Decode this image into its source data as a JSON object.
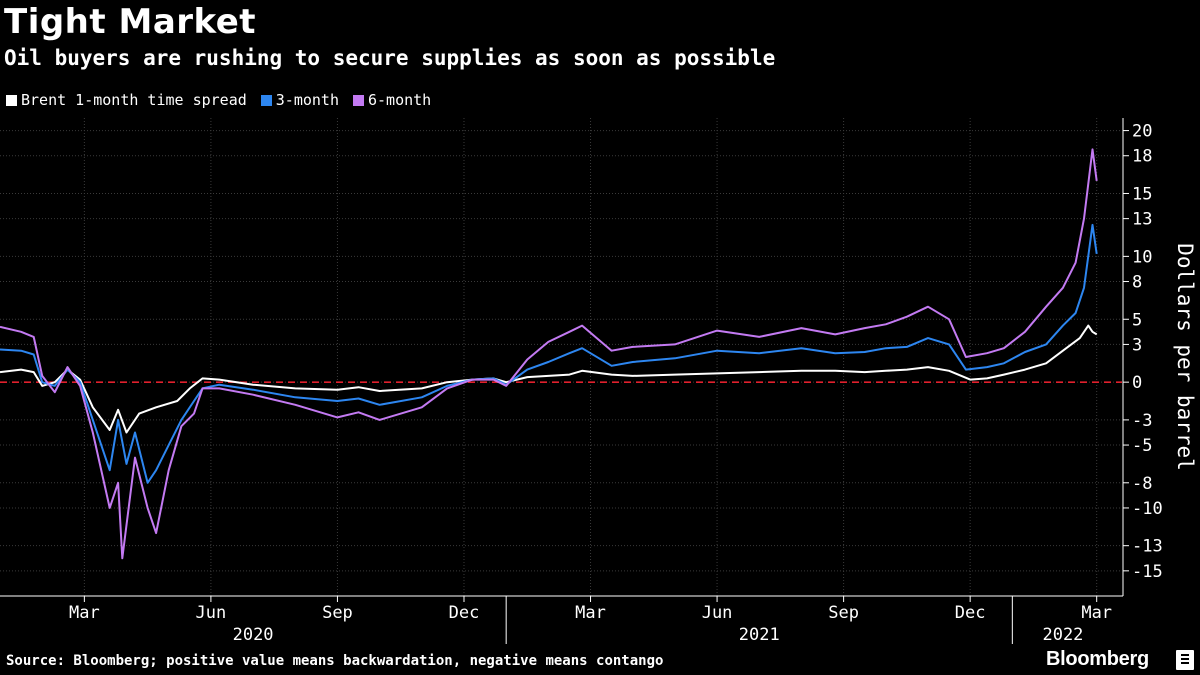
{
  "chart_data": {
    "type": "line",
    "title": "Tight Market",
    "subtitle": "Oil buyers are rushing to secure supplies as soon as possible",
    "ylabel": "Dollars per barrel",
    "ylim": [
      -17,
      21
    ],
    "y_ticks": [
      20,
      18,
      15,
      13,
      10,
      8,
      5,
      3,
      0,
      -3,
      -5,
      -8,
      -10,
      -13,
      -15
    ],
    "x_ticks": [
      "Mar",
      "Jun",
      "Sep",
      "Dec",
      "Mar",
      "Jun",
      "Sep",
      "Dec",
      "Mar"
    ],
    "x_tick_index": [
      2.0,
      5.0,
      8.0,
      11.0,
      14.0,
      17.0,
      20.0,
      23.0,
      26.0
    ],
    "year_labels": [
      "2020",
      "2021",
      "2022"
    ],
    "year_label_index": [
      6.0,
      18.0,
      25.2
    ],
    "year_separator_index": [
      12.0,
      24.0
    ],
    "x_range_index": [
      0,
      26.6
    ],
    "reference_line": {
      "value": 0,
      "color": "#e0202c",
      "style": "dashed"
    },
    "series": [
      {
        "name": "Brent 1-month time spread",
        "color": "#ffffff",
        "points": [
          [
            0,
            0.8
          ],
          [
            0.5,
            1.0
          ],
          [
            0.8,
            0.8
          ],
          [
            1.0,
            -0.3
          ],
          [
            1.3,
            0
          ],
          [
            1.6,
            1.0
          ],
          [
            1.9,
            0.2
          ],
          [
            2.2,
            -2
          ],
          [
            2.6,
            -3.8
          ],
          [
            2.8,
            -2.2
          ],
          [
            3.0,
            -4
          ],
          [
            3.3,
            -2.5
          ],
          [
            3.7,
            -2
          ],
          [
            4.2,
            -1.5
          ],
          [
            4.5,
            -0.5
          ],
          [
            4.8,
            0.3
          ],
          [
            5.2,
            0.2
          ],
          [
            6.0,
            -0.2
          ],
          [
            7.0,
            -0.5
          ],
          [
            8.0,
            -0.6
          ],
          [
            8.5,
            -0.4
          ],
          [
            9.0,
            -0.7
          ],
          [
            10.0,
            -0.5
          ],
          [
            10.6,
            0
          ],
          [
            11.2,
            0.2
          ],
          [
            11.7,
            0.3
          ],
          [
            12.0,
            0
          ],
          [
            12.5,
            0.4
          ],
          [
            13.0,
            0.5
          ],
          [
            13.5,
            0.6
          ],
          [
            13.8,
            0.9
          ],
          [
            14.5,
            0.6
          ],
          [
            15.0,
            0.5
          ],
          [
            16.0,
            0.6
          ],
          [
            17.0,
            0.7
          ],
          [
            18.0,
            0.8
          ],
          [
            19.0,
            0.9
          ],
          [
            19.8,
            0.9
          ],
          [
            20.5,
            0.8
          ],
          [
            21.0,
            0.9
          ],
          [
            21.5,
            1.0
          ],
          [
            22.0,
            1.2
          ],
          [
            22.5,
            0.9
          ],
          [
            23.0,
            0.2
          ],
          [
            23.4,
            0.3
          ],
          [
            23.8,
            0.6
          ],
          [
            24.3,
            1.0
          ],
          [
            24.8,
            1.5
          ],
          [
            25.2,
            2.5
          ],
          [
            25.6,
            3.5
          ],
          [
            25.8,
            4.5
          ],
          [
            25.9,
            4
          ],
          [
            26.0,
            3.8
          ]
        ]
      },
      {
        "name": "3-month",
        "color": "#2d86f0",
        "points": [
          [
            0,
            2.6
          ],
          [
            0.5,
            2.5
          ],
          [
            0.8,
            2.2
          ],
          [
            1.0,
            0
          ],
          [
            1.3,
            -0.3
          ],
          [
            1.6,
            1.0
          ],
          [
            1.9,
            0
          ],
          [
            2.2,
            -3
          ],
          [
            2.6,
            -7
          ],
          [
            2.8,
            -3
          ],
          [
            3.0,
            -6.5
          ],
          [
            3.2,
            -4
          ],
          [
            3.5,
            -8
          ],
          [
            3.7,
            -7
          ],
          [
            4.0,
            -5
          ],
          [
            4.3,
            -3
          ],
          [
            4.6,
            -1.5
          ],
          [
            4.8,
            -0.5
          ],
          [
            5.2,
            -0.2
          ],
          [
            6.0,
            -0.6
          ],
          [
            7.0,
            -1.2
          ],
          [
            8.0,
            -1.5
          ],
          [
            8.5,
            -1.3
          ],
          [
            9.0,
            -1.8
          ],
          [
            10.0,
            -1.2
          ],
          [
            10.6,
            -0.3
          ],
          [
            11.2,
            0.2
          ],
          [
            11.7,
            0.3
          ],
          [
            12.0,
            -0.2
          ],
          [
            12.5,
            1.0
          ],
          [
            13.0,
            1.6
          ],
          [
            13.5,
            2.3
          ],
          [
            13.8,
            2.7
          ],
          [
            14.5,
            1.3
          ],
          [
            15.0,
            1.6
          ],
          [
            16.0,
            1.9
          ],
          [
            17.0,
            2.5
          ],
          [
            18.0,
            2.3
          ],
          [
            19.0,
            2.7
          ],
          [
            19.8,
            2.3
          ],
          [
            20.5,
            2.4
          ],
          [
            21.0,
            2.7
          ],
          [
            21.5,
            2.8
          ],
          [
            22.0,
            3.5
          ],
          [
            22.5,
            3.0
          ],
          [
            22.9,
            1.0
          ],
          [
            23.4,
            1.2
          ],
          [
            23.8,
            1.5
          ],
          [
            24.3,
            2.4
          ],
          [
            24.8,
            3.0
          ],
          [
            25.2,
            4.5
          ],
          [
            25.5,
            5.5
          ],
          [
            25.7,
            7.5
          ],
          [
            25.9,
            12.5
          ],
          [
            26.0,
            10.2
          ]
        ]
      },
      {
        "name": "6-month",
        "color": "#c37af2",
        "points": [
          [
            0,
            4.4
          ],
          [
            0.5,
            4.0
          ],
          [
            0.8,
            3.6
          ],
          [
            1.0,
            0.5
          ],
          [
            1.3,
            -0.8
          ],
          [
            1.6,
            1.2
          ],
          [
            1.9,
            -0.3
          ],
          [
            2.2,
            -4
          ],
          [
            2.6,
            -10
          ],
          [
            2.8,
            -8
          ],
          [
            2.9,
            -14
          ],
          [
            3.2,
            -6
          ],
          [
            3.5,
            -10
          ],
          [
            3.7,
            -12
          ],
          [
            4.0,
            -7
          ],
          [
            4.3,
            -3.5
          ],
          [
            4.6,
            -2.5
          ],
          [
            4.8,
            -0.5
          ],
          [
            5.2,
            -0.5
          ],
          [
            6.0,
            -1.0
          ],
          [
            7.0,
            -1.8
          ],
          [
            8.0,
            -2.8
          ],
          [
            8.5,
            -2.4
          ],
          [
            9.0,
            -3.0
          ],
          [
            10.0,
            -2.0
          ],
          [
            10.6,
            -0.5
          ],
          [
            11.2,
            0.2
          ],
          [
            11.7,
            0.2
          ],
          [
            12.0,
            -0.3
          ],
          [
            12.5,
            1.8
          ],
          [
            13.0,
            3.2
          ],
          [
            13.5,
            4.0
          ],
          [
            13.8,
            4.5
          ],
          [
            14.5,
            2.5
          ],
          [
            15.0,
            2.8
          ],
          [
            16.0,
            3.0
          ],
          [
            17.0,
            4.1
          ],
          [
            18.0,
            3.6
          ],
          [
            19.0,
            4.3
          ],
          [
            19.8,
            3.8
          ],
          [
            20.5,
            4.3
          ],
          [
            21.0,
            4.6
          ],
          [
            21.5,
            5.2
          ],
          [
            22.0,
            6.0
          ],
          [
            22.5,
            5.0
          ],
          [
            22.9,
            2.0
          ],
          [
            23.4,
            2.3
          ],
          [
            23.8,
            2.7
          ],
          [
            24.3,
            4.0
          ],
          [
            24.8,
            6.0
          ],
          [
            25.2,
            7.5
          ],
          [
            25.5,
            9.5
          ],
          [
            25.7,
            13
          ],
          [
            25.9,
            18.5
          ],
          [
            26.0,
            16
          ]
        ]
      }
    ]
  },
  "source_note": "Source: Bloomberg; positive value means backwardation, negative means contango",
  "brand": "Bloomberg"
}
